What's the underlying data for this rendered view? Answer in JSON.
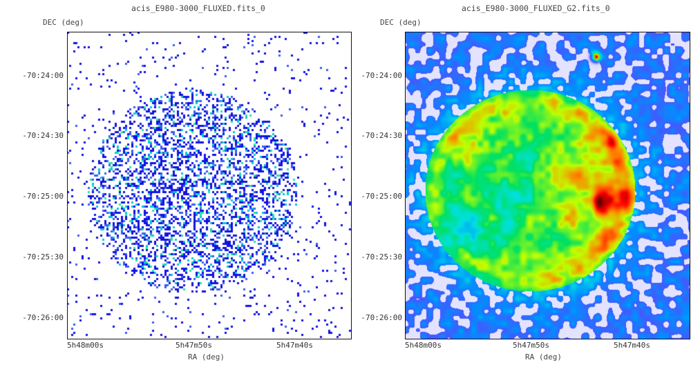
{
  "chart_data": [
    {
      "type": "heatmap",
      "title": "acis_E980-3000_FLUXED.fits_0",
      "xlabel": "RA (deg)",
      "ylabel": "DEC (deg)",
      "xticks": [
        "5h48m00s",
        "5h47m50s",
        "5h47m40s"
      ],
      "yticks": [
        "-70:24:00",
        "-70:24:30",
        "-70:25:00",
        "-70:25:30",
        "-70:26:00"
      ],
      "style": "sparse-counts",
      "colors": [
        "#1212e0",
        "#3a5cf0",
        "#00c8d8",
        "#20e8a0"
      ]
    },
    {
      "type": "heatmap",
      "title": "acis_E980-3000_FLUXED_G2.fits_0",
      "xlabel": "RA (deg)",
      "ylabel": "DEC (deg)",
      "xticks": [
        "5h48m00s",
        "5h47m50s",
        "5h47m40s"
      ],
      "yticks": [
        "-70:24:00",
        "-70:24:30",
        "-70:25:00",
        "-70:25:30",
        "-70:26:00"
      ],
      "style": "smoothed",
      "colormap": [
        "#ffffff",
        "#5050ff",
        "#0090ff",
        "#00e0e0",
        "#00e060",
        "#c0ff00",
        "#ff8000",
        "#ff0000",
        "#700000"
      ]
    }
  ]
}
